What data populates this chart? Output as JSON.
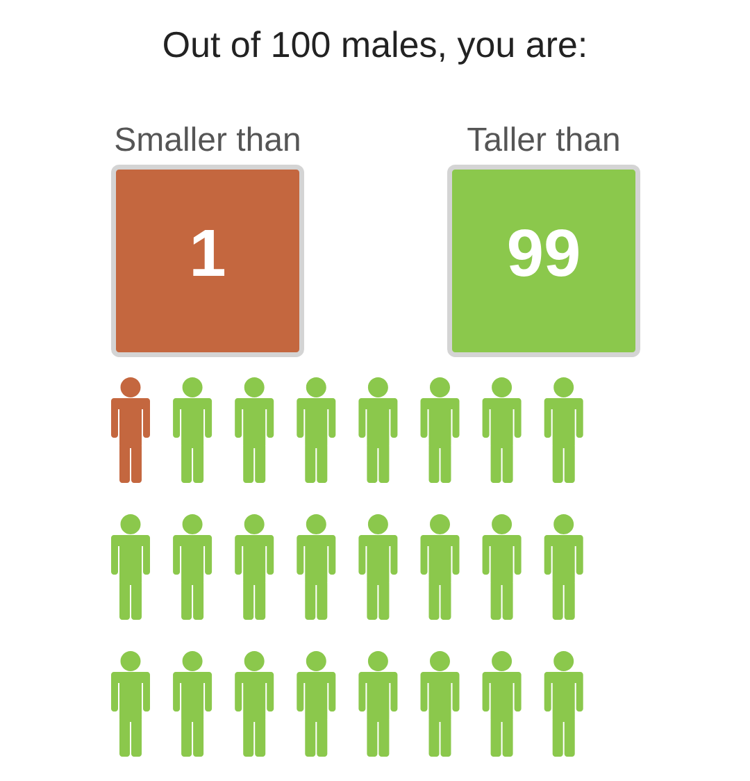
{
  "chart_data": {
    "type": "other",
    "title": "Out of 100 males, you are:",
    "categories": [
      "Smaller than",
      "Taller than"
    ],
    "values": [
      1,
      99
    ],
    "colors": [
      "#c4673f",
      "#8bc84c"
    ],
    "data_labels": true
  }
}
